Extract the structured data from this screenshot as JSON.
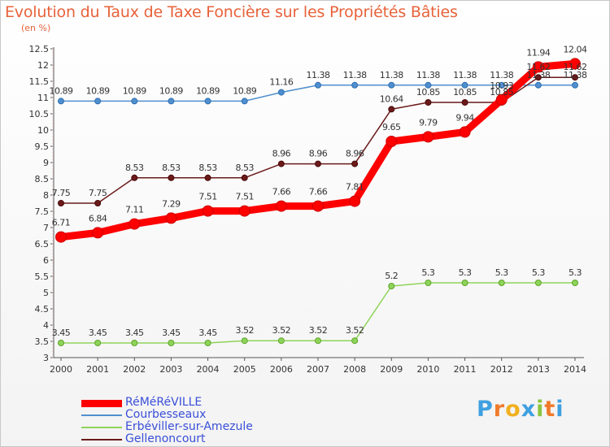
{
  "chart_data": {
    "type": "line",
    "title": "Evolution du Taux de Taxe Foncière sur les Propriétés Bâties",
    "ylabel": "(en %)",
    "xlabel": "",
    "x": [
      "2000",
      "2001",
      "2002",
      "2003",
      "2004",
      "2005",
      "2006",
      "2007",
      "2008",
      "2009",
      "2010",
      "2011",
      "2012",
      "2013",
      "2014"
    ],
    "ylim": [
      3,
      12.5
    ],
    "yticks": [
      "3",
      "3.5",
      "4",
      "4.5",
      "5",
      "5.5",
      "6",
      "6.5",
      "7",
      "7.5",
      "8",
      "8.5",
      "9",
      "9.5",
      "10",
      "10.5",
      "11",
      "11.5",
      "12",
      "12.5"
    ],
    "grid": false,
    "legend": "bottom-left",
    "series": [
      {
        "name": "RéMéRéVILLE",
        "color": "#ff0000",
        "values": [
          6.71,
          6.84,
          7.11,
          7.29,
          7.51,
          7.51,
          7.66,
          7.66,
          7.81,
          9.65,
          9.79,
          9.94,
          10.93,
          11.94,
          12.04
        ],
        "labels": [
          "6.71",
          "6.84",
          "7.11",
          "7.29",
          "7.51",
          "7.51",
          "7.66",
          "7.66",
          "7.81",
          "9.65",
          "9.79",
          "9.94",
          "10.93",
          "11.94",
          "12.04"
        ]
      },
      {
        "name": "Courbesseaux",
        "color": "#4f8fcf",
        "values": [
          10.89,
          10.89,
          10.89,
          10.89,
          10.89,
          10.89,
          11.16,
          11.38,
          11.38,
          11.38,
          11.38,
          11.38,
          11.38,
          11.38,
          11.38
        ],
        "labels": [
          "10.89",
          "10.89",
          "10.89",
          "10.89",
          "10.89",
          "10.89",
          "11.16",
          "11.38",
          "11.38",
          "11.38",
          "11.38",
          "11.38",
          "11.38",
          "11.38",
          "11.38"
        ]
      },
      {
        "name": "Erbéviller-sur-Amezule",
        "color": "#8fd45a",
        "values": [
          3.45,
          3.45,
          3.45,
          3.45,
          3.45,
          3.52,
          3.52,
          3.52,
          3.52,
          5.2,
          5.3,
          5.3,
          5.3,
          5.3,
          5.3
        ],
        "labels": [
          "3.45",
          "3.45",
          "3.45",
          "3.45",
          "3.45",
          "3.52",
          "3.52",
          "3.52",
          "3.52",
          "5.2",
          "5.3",
          "5.3",
          "5.3",
          "5.3",
          "5.3"
        ]
      },
      {
        "name": "Gellenoncourt",
        "color": "#6b1a1a",
        "values": [
          7.75,
          7.75,
          8.53,
          8.53,
          8.53,
          8.53,
          8.96,
          8.96,
          8.96,
          10.64,
          10.85,
          10.85,
          10.85,
          11.62,
          11.62
        ],
        "labels": [
          "7.75",
          "7.75",
          "8.53",
          "8.53",
          "8.53",
          "8.53",
          "8.96",
          "8.96",
          "8.96",
          "10.64",
          "10.85",
          "10.85",
          "10.85",
          "11.62",
          "11.62"
        ]
      }
    ]
  },
  "logo": {
    "text": "Proxiti",
    "letters": [
      "P",
      "r",
      "o",
      "x",
      "i",
      "t",
      "i"
    ],
    "colors": [
      "#3fa0e0",
      "#f07a2a",
      "#f0b020",
      "#3fa0e0",
      "#8cc63f",
      "#f07a2a",
      "#3fa0e0"
    ]
  }
}
